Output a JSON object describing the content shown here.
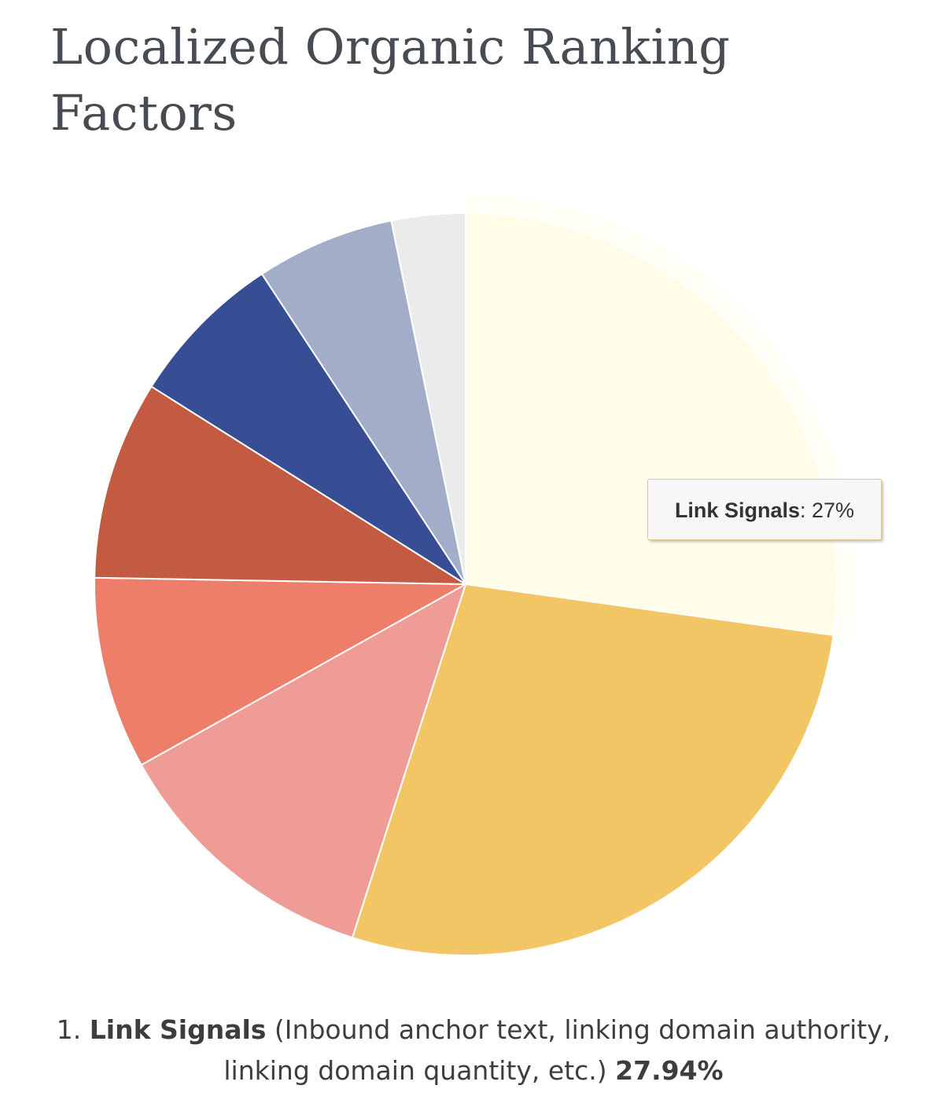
{
  "page": {
    "title": "Localized Organic Ranking Factors"
  },
  "chart_data": {
    "type": "pie",
    "title": "Localized Organic Ranking Factors",
    "start_angle_deg": 0,
    "direction": "clockwise",
    "slices": [
      {
        "name": "Link Signals",
        "value": 27.94,
        "color": "#fffde8",
        "highlighted": true
      },
      {
        "name": "",
        "value": 28.5,
        "color": "#f2c665"
      },
      {
        "name": "",
        "value": 12.3,
        "color": "#f09c96"
      },
      {
        "name": "",
        "value": 8.6,
        "color": "#ed7f6a"
      },
      {
        "name": "",
        "value": 8.9,
        "color": "#c25b41"
      },
      {
        "name": "",
        "value": 7.0,
        "color": "#384e94"
      },
      {
        "name": "",
        "value": 6.2,
        "color": "#a2aec9"
      },
      {
        "name": "",
        "value": 3.3,
        "color": "#ecebec"
      }
    ]
  },
  "tooltip": {
    "name": "Link Signals",
    "separator": ": ",
    "value": "27%"
  },
  "legend": {
    "number": "1.",
    "name": "Link Signals",
    "description": "(Inbound anchor text, linking domain authority, linking domain quantity, etc.)",
    "percent": "27.94%"
  }
}
